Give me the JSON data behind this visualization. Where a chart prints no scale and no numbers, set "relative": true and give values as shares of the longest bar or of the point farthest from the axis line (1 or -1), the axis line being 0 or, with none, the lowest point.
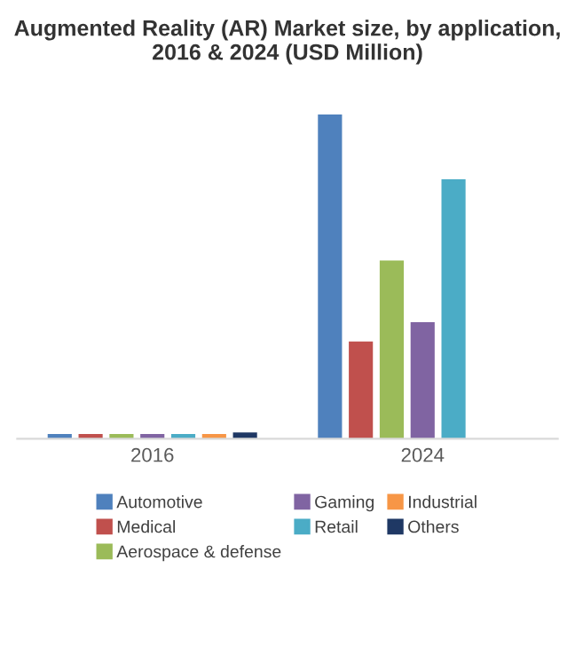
{
  "chart_data": {
    "type": "bar",
    "title": "Augmented Reality (AR) Market size, by application, 2016 & 2024 (USD Million)",
    "relative": true,
    "categories": [
      "2016",
      "2024"
    ],
    "legend": "bottom",
    "grid": false,
    "series": [
      {
        "name": "Automotive",
        "color": "#4f81bd",
        "values": [
          0.015,
          1
        ]
      },
      {
        "name": "Medical",
        "color": "#c0504d",
        "values": [
          0.015,
          0.3
        ]
      },
      {
        "name": "Aerospace & defense",
        "color": "#9bbb59",
        "values": [
          0.015,
          0.55
        ]
      },
      {
        "name": "Gaming",
        "color": "#8064a2",
        "values": [
          0.015,
          0.36
        ]
      },
      {
        "name": "Retail",
        "color": "#4bacc6",
        "values": [
          0.015,
          0.8
        ]
      },
      {
        "name": "Industrial",
        "color": "#f79646",
        "values": [
          0.015,
          null
        ]
      },
      {
        "name": "Others",
        "color": "#1f3864",
        "values": [
          0.02,
          null
        ]
      }
    ]
  }
}
